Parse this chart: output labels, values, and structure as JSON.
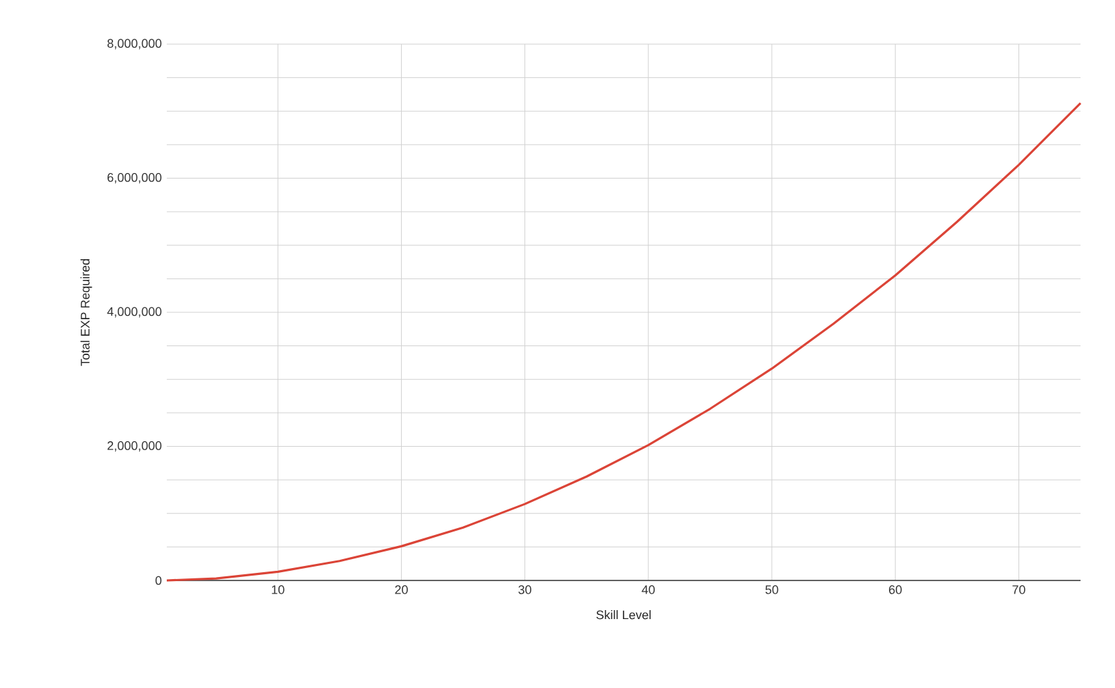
{
  "chart_data": {
    "type": "line",
    "xlabel": "Skill Level",
    "ylabel": "Total EXP Required",
    "x": [
      1,
      5,
      10,
      15,
      20,
      25,
      30,
      35,
      40,
      45,
      50,
      55,
      60,
      65,
      70,
      75
    ],
    "series": [
      {
        "color": "#db4437",
        "values": [
          0,
          30000,
          130000,
          290000,
          510000,
          790000,
          1140000,
          1550000,
          2020000,
          2560000,
          3160000,
          3830000,
          4550000,
          5350000,
          6200000,
          7120000
        ]
      }
    ],
    "xlim": [
      1,
      75
    ],
    "xticks": [
      10,
      20,
      30,
      40,
      50,
      60,
      70
    ],
    "ylim": [
      0,
      8000000
    ],
    "yticks": [
      {
        "value": 0,
        "label": "0"
      },
      {
        "value": 500000,
        "label": null
      },
      {
        "value": 1000000,
        "label": null
      },
      {
        "value": 1500000,
        "label": null
      },
      {
        "value": 2000000,
        "label": "2,000,000"
      },
      {
        "value": 2500000,
        "label": null
      },
      {
        "value": 3000000,
        "label": null
      },
      {
        "value": 3500000,
        "label": null
      },
      {
        "value": 4000000,
        "label": "4,000,000"
      },
      {
        "value": 4500000,
        "label": null
      },
      {
        "value": 5000000,
        "label": null
      },
      {
        "value": 5500000,
        "label": null
      },
      {
        "value": 6000000,
        "label": "6,000,000"
      },
      {
        "value": 6500000,
        "label": null
      },
      {
        "value": 7000000,
        "label": null
      },
      {
        "value": 7500000,
        "label": null
      },
      {
        "value": 8000000,
        "label": "8,000,000"
      }
    ],
    "grid": true,
    "marker": "none",
    "line_style": "solid"
  }
}
